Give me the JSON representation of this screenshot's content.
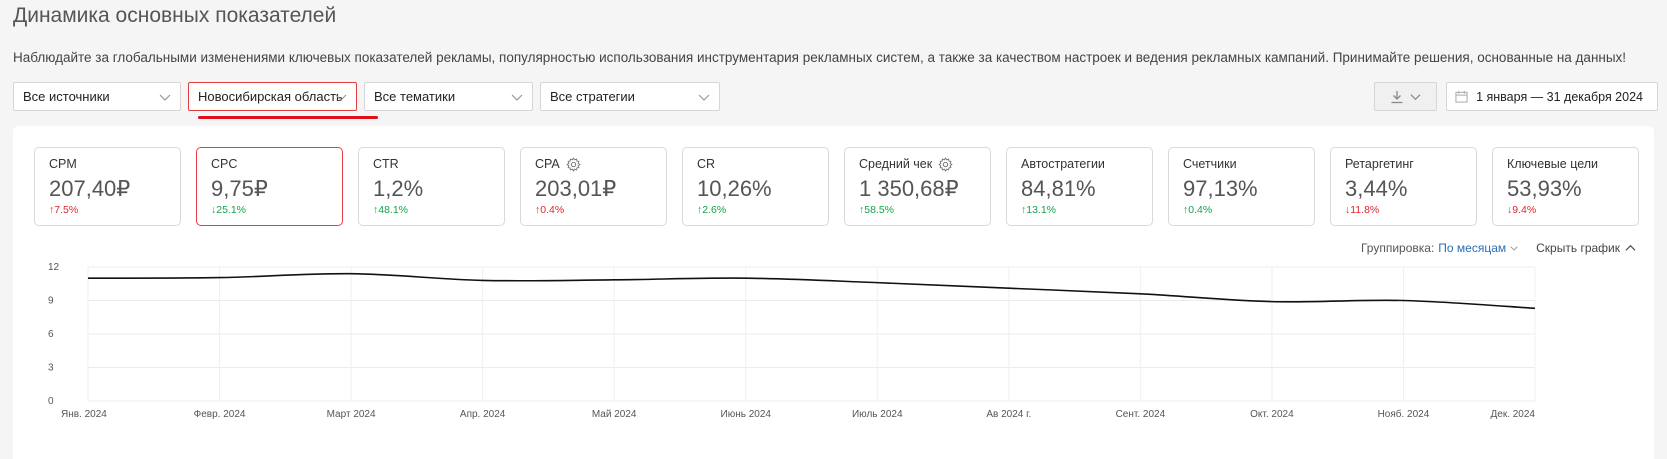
{
  "page": {
    "title": "Динамика основных показателей",
    "description": "Наблюдайте за глобальными изменениями ключевых показателей рекламы, популярностью использования инструментария рекламных систем, а также за качеством настроек и ведения рекламных кампаний. Принимайте решения, основанные на данных!"
  },
  "filters": {
    "source": "Все источники",
    "region": "Новосибирская область",
    "topic": "Все тематики",
    "strategy": "Все стратегии"
  },
  "date_range": "1 января — 31 декабря 2024",
  "metrics": [
    {
      "label": "CPM",
      "value": "207,40₽",
      "delta": "↑7.5%",
      "delta_color": "red"
    },
    {
      "label": "CPC",
      "value": "9,75₽",
      "delta": "↓25.1%",
      "delta_color": "green",
      "selected": true
    },
    {
      "label": "CTR",
      "value": "1,2%",
      "delta": "↑48.1%",
      "delta_color": "green"
    },
    {
      "label": "CPA",
      "value": "203,01₽",
      "delta": "↑0.4%",
      "delta_color": "red",
      "icon": "gear-icon"
    },
    {
      "label": "CR",
      "value": "10,26%",
      "delta": "↑2.6%",
      "delta_color": "green"
    },
    {
      "label": "Средний чек",
      "value": "1 350,68₽",
      "delta": "↑58.5%",
      "delta_color": "green",
      "icon": "gear-icon"
    },
    {
      "label": "Автостратегии",
      "value": "84,81%",
      "delta": "↑13.1%",
      "delta_color": "green"
    },
    {
      "label": "Счетчики",
      "value": "97,13%",
      "delta": "↑0.4%",
      "delta_color": "green"
    },
    {
      "label": "Ретаргетинг",
      "value": "3,44%",
      "delta": "↓11.8%",
      "delta_color": "red"
    },
    {
      "label": "Ключевые цели",
      "value": "53,93%",
      "delta": "↓9.4%",
      "delta_color": "red"
    }
  ],
  "chart_controls": {
    "grouping_label": "Группировка:",
    "grouping_value": "По месяцам",
    "hide_label": "Скрыть график"
  },
  "colors": {
    "accent_red": "#e0101a",
    "link_blue": "#2a6fb6",
    "positive": "#14a44d",
    "negative": "#e0252e"
  },
  "chart_data": {
    "type": "line",
    "categories": [
      "Янв. 2024",
      "Февр. 2024",
      "Март 2024",
      "Апр. 2024",
      "Май 2024",
      "Июнь 2024",
      "Июль 2024",
      "Ав 2024 г.",
      "Сент. 2024",
      "Окт. 2024",
      "Нояб. 2024",
      "Дек. 2024"
    ],
    "series": [
      {
        "values": [
          11.0,
          11.05,
          11.4,
          10.8,
          10.85,
          11.0,
          10.6,
          10.1,
          9.6,
          8.9,
          9.0,
          8.3
        ]
      }
    ],
    "y_ticks": [
      "12",
      "9",
      "6",
      "3",
      "0"
    ],
    "ylim": [
      0,
      12
    ],
    "grid": true,
    "title": "",
    "xlabel": "",
    "ylabel": ""
  }
}
